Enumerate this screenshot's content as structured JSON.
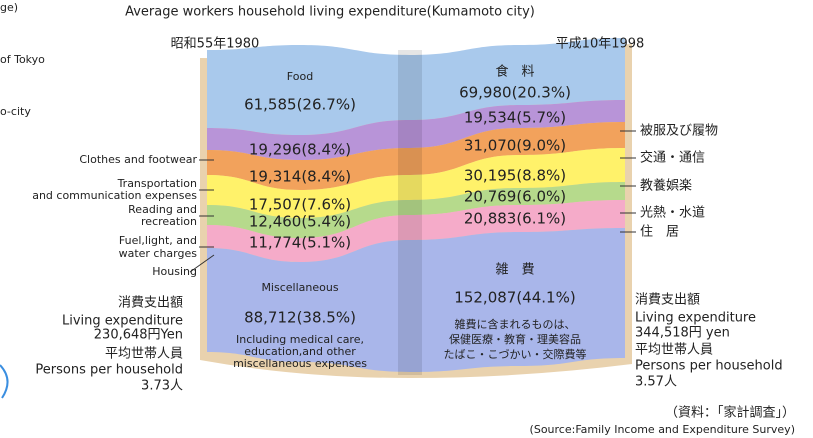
{
  "partial_left": [
    "ge)",
    "of Tokyo",
    "o-city"
  ],
  "title": "Average workers household living expenditure(Kumamoto city)",
  "years": {
    "left": "昭和55年1980",
    "right": "平成10年1998"
  },
  "left_page": {
    "food_label": "Food",
    "food": "61,585(26.7%)",
    "clothes": "19,296(8.4%)",
    "transport": "19,314(8.4%)",
    "reading": "17,507(7.6%)",
    "fuel": "12,460(5.4%)",
    "housing": "11,774(5.1%)",
    "misc_label": "Miscellaneous",
    "misc": "88,712(38.5%)",
    "misc_note": [
      "Including medical care,",
      "education,and other",
      "miscellaneous expenses"
    ]
  },
  "right_page": {
    "food_label": "食　料",
    "food": "69,980(20.3%)",
    "clothes": "19,534(5.7%)",
    "transport": "31,070(9.0%)",
    "reading": "30,195(8.8%)",
    "fuel": "20,769(6.0%)",
    "housing": "20,883(6.1%)",
    "misc_label": "雑　費",
    "misc": "152,087(44.1%)",
    "misc_note": [
      "雑費に含まれるものは、",
      "保健医療・教育・理美容品",
      "たばこ・こづかい・交際費等"
    ]
  },
  "left_labels": [
    [
      "Clothes and footwear"
    ],
    [
      "Transportation",
      "and communication expenses"
    ],
    [
      "Reading and",
      "recreation"
    ],
    [
      "Fuel,light, and",
      "water charges"
    ],
    [
      "Housing"
    ]
  ],
  "right_labels": [
    "被服及び履物",
    "交通・通信",
    "教養娯楽",
    "光熱・水道",
    "住　居"
  ],
  "left_summary": [
    "消費支出額",
    "Living expenditure",
    "230,648円Yen",
    "平均世帯人員",
    "Persons per household",
    "3.73人"
  ],
  "right_summary": [
    "消費支出額",
    "Living expenditure",
    "344,518円 yen",
    "平均世帯人員",
    "Persons per household",
    "3.57人"
  ],
  "source": [
    "（資料：「家計調査」）",
    "(Source:Family Income and Expenditure Survey)"
  ]
}
